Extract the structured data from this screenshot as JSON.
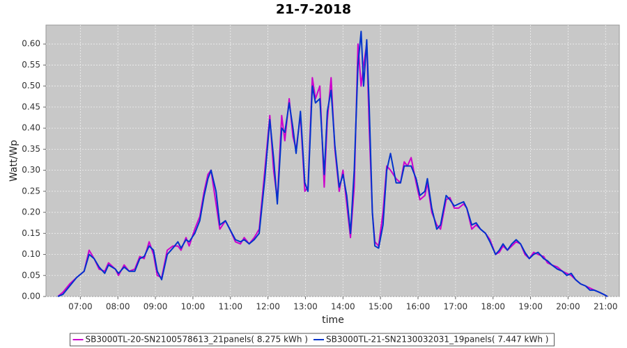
{
  "chart_data": {
    "type": "line",
    "title": "21-7-2018",
    "x_label": "time",
    "y_label": "Watt/Wp",
    "x": [
      "06:24",
      "06:32",
      "06:43",
      "06:54",
      "07:06",
      "07:14",
      "07:22",
      "07:30",
      "07:39",
      "07:45",
      "07:56",
      "08:01",
      "08:10",
      "08:18",
      "08:27",
      "08:35",
      "08:42",
      "08:50",
      "08:57",
      "09:03",
      "09:10",
      "09:19",
      "09:28",
      "09:36",
      "09:41",
      "09:49",
      "09:54",
      "10:03",
      "10:11",
      "10:18",
      "10:24",
      "10:29",
      "10:37",
      "10:43",
      "10:52",
      "10:59",
      "11:08",
      "11:16",
      "11:22",
      "11:30",
      "11:38",
      "11:46",
      "11:55",
      "12:03",
      "12:09",
      "12:15",
      "12:22",
      "12:27",
      "12:34",
      "12:40",
      "12:45",
      "12:52",
      "12:59",
      "13:04",
      "13:11",
      "13:16",
      "13:23",
      "13:30",
      "13:35",
      "13:41",
      "13:47",
      "13:54",
      "14:00",
      "14:06",
      "14:12",
      "14:18",
      "14:24",
      "14:29",
      "14:33",
      "14:38",
      "14:42",
      "14:47",
      "14:51",
      "14:57",
      "15:04",
      "15:10",
      "15:16",
      "15:25",
      "15:32",
      "15:38",
      "15:43",
      "15:49",
      "15:57",
      "16:03",
      "16:11",
      "16:15",
      "16:22",
      "16:30",
      "16:36",
      "16:45",
      "16:51",
      "16:58",
      "17:05",
      "17:13",
      "17:18",
      "17:26",
      "17:33",
      "17:40",
      "17:48",
      "17:55",
      "18:04",
      "18:10",
      "18:16",
      "18:23",
      "18:30",
      "18:37",
      "18:44",
      "18:51",
      "18:58",
      "19:05",
      "19:12",
      "19:21",
      "19:27",
      "19:34",
      "19:43",
      "19:51",
      "19:58",
      "20:05",
      "20:12",
      "20:20",
      "20:28",
      "20:35",
      "20:42",
      "20:50",
      "20:57",
      "21:03"
    ],
    "series": [
      {
        "name": "SB3000TL-20-SN2100578613_21panels( 8.275 kWh )",
        "color": "#cc00cc",
        "values": [
          0,
          0.01,
          0.03,
          0.045,
          0.06,
          0.11,
          0.09,
          0.065,
          0.06,
          0.08,
          0.065,
          0.05,
          0.075,
          0.06,
          0.065,
          0.095,
          0.09,
          0.13,
          0.1,
          0.05,
          0.045,
          0.11,
          0.12,
          0.12,
          0.11,
          0.14,
          0.12,
          0.16,
          0.19,
          0.25,
          0.29,
          0.3,
          0.22,
          0.16,
          0.18,
          0.16,
          0.13,
          0.125,
          0.14,
          0.125,
          0.14,
          0.16,
          0.3,
          0.43,
          0.3,
          0.23,
          0.43,
          0.37,
          0.47,
          0.38,
          0.35,
          0.43,
          0.25,
          0.26,
          0.52,
          0.47,
          0.5,
          0.26,
          0.42,
          0.52,
          0.35,
          0.25,
          0.3,
          0.22,
          0.14,
          0.26,
          0.6,
          0.5,
          0.55,
          0.6,
          0.4,
          0.2,
          0.13,
          0.12,
          0.2,
          0.31,
          0.3,
          0.28,
          0.27,
          0.32,
          0.31,
          0.33,
          0.27,
          0.23,
          0.24,
          0.27,
          0.2,
          0.17,
          0.16,
          0.23,
          0.235,
          0.21,
          0.21,
          0.22,
          0.21,
          0.16,
          0.17,
          0.16,
          0.15,
          0.135,
          0.1,
          0.105,
          0.12,
          0.11,
          0.12,
          0.13,
          0.125,
          0.1,
          0.09,
          0.105,
          0.1,
          0.095,
          0.08,
          0.075,
          0.07,
          0.06,
          0.055,
          0.05,
          0.04,
          0.03,
          0.025,
          0.02,
          0.015,
          0.01,
          0.005,
          0
        ]
      },
      {
        "name": "SB3000TL-21-SN2130032031_19panels( 7.447 kWh )",
        "color": "#0033cc",
        "values": [
          0,
          0.005,
          0.025,
          0.045,
          0.06,
          0.1,
          0.09,
          0.07,
          0.055,
          0.075,
          0.065,
          0.055,
          0.07,
          0.06,
          0.06,
          0.09,
          0.095,
          0.12,
          0.11,
          0.06,
          0.04,
          0.1,
          0.115,
          0.13,
          0.115,
          0.135,
          0.13,
          0.15,
          0.18,
          0.24,
          0.28,
          0.3,
          0.25,
          0.17,
          0.18,
          0.16,
          0.135,
          0.13,
          0.135,
          0.125,
          0.135,
          0.15,
          0.28,
          0.42,
          0.33,
          0.22,
          0.4,
          0.39,
          0.46,
          0.4,
          0.34,
          0.44,
          0.27,
          0.25,
          0.5,
          0.46,
          0.47,
          0.29,
          0.44,
          0.49,
          0.36,
          0.26,
          0.29,
          0.24,
          0.15,
          0.3,
          0.55,
          0.63,
          0.5,
          0.61,
          0.45,
          0.2,
          0.12,
          0.115,
          0.17,
          0.3,
          0.34,
          0.27,
          0.27,
          0.31,
          0.31,
          0.31,
          0.28,
          0.24,
          0.25,
          0.28,
          0.21,
          0.16,
          0.17,
          0.24,
          0.23,
          0.215,
          0.22,
          0.225,
          0.21,
          0.17,
          0.175,
          0.16,
          0.15,
          0.13,
          0.1,
          0.11,
          0.125,
          0.11,
          0.125,
          0.135,
          0.125,
          0.105,
          0.09,
          0.1,
          0.105,
          0.09,
          0.085,
          0.075,
          0.065,
          0.06,
          0.05,
          0.055,
          0.04,
          0.03,
          0.025,
          0.015,
          0.015,
          0.01,
          0.005,
          0
        ]
      }
    ],
    "xlim": [
      "06:05",
      "21:22"
    ],
    "xticks": [
      "07:00",
      "08:00",
      "09:00",
      "10:00",
      "11:00",
      "12:00",
      "13:00",
      "14:00",
      "15:00",
      "16:00",
      "17:00",
      "18:00",
      "19:00",
      "20:00",
      "21:00"
    ],
    "ylim": [
      0,
      0.645
    ],
    "yticks": [
      {
        "value": 0,
        "label": "0.00"
      },
      {
        "value": 0.05,
        "label": "0.05"
      },
      {
        "value": 0.1,
        "label": "0.10"
      },
      {
        "value": 0.15,
        "label": "0.15"
      },
      {
        "value": 0.2,
        "label": "0.20"
      },
      {
        "value": 0.25,
        "label": "0.25"
      },
      {
        "value": 0.3,
        "label": "0.30"
      },
      {
        "value": 0.35,
        "label": "0.35"
      },
      {
        "value": 0.4,
        "label": "0.40"
      },
      {
        "value": 0.45,
        "label": "0.45"
      },
      {
        "value": 0.5,
        "label": "0.50"
      },
      {
        "value": 0.55,
        "label": "0.55"
      },
      {
        "value": 0.6,
        "label": "0.60"
      }
    ],
    "grid": true,
    "legend": "bottom"
  }
}
